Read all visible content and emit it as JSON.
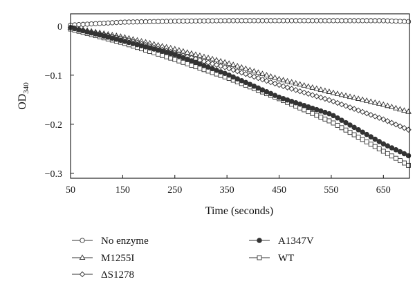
{
  "chart_data": {
    "type": "line",
    "title": "",
    "xlabel": "Time (seconds)",
    "ylabel": "OD",
    "ylabel_subscript": "340",
    "xlim": [
      50,
      700
    ],
    "ylim": [
      -0.31,
      0.025
    ],
    "x_ticks": [
      50,
      150,
      250,
      350,
      450,
      550,
      650
    ],
    "y_ticks": [
      0,
      -0.1,
      -0.2,
      -0.3
    ],
    "y_tick_labels": [
      "0",
      "−0.1",
      "−0.2",
      "−0.3"
    ],
    "grid": false,
    "legend_position": "below",
    "x": [
      50,
      150,
      250,
      350,
      450,
      550,
      650,
      700
    ],
    "series": [
      {
        "name": "No enzyme",
        "marker": "circle-open",
        "values": [
          0.002,
          0.008,
          0.01,
          0.011,
          0.011,
          0.011,
          0.011,
          0.009
        ]
      },
      {
        "name": "M1255I",
        "marker": "triangle-open",
        "values": [
          -0.003,
          -0.022,
          -0.047,
          -0.075,
          -0.108,
          -0.135,
          -0.16,
          -0.175
        ]
      },
      {
        "name": "ΔS1278",
        "marker": "diamond-open",
        "values": [
          -0.003,
          -0.026,
          -0.055,
          -0.085,
          -0.12,
          -0.152,
          -0.19,
          -0.212
        ]
      },
      {
        "name": "A1347V",
        "marker": "circle-filled",
        "values": [
          -0.003,
          -0.03,
          -0.058,
          -0.098,
          -0.145,
          -0.18,
          -0.24,
          -0.265
        ]
      },
      {
        "name": "WT",
        "marker": "square-open",
        "values": [
          -0.006,
          -0.034,
          -0.068,
          -0.105,
          -0.148,
          -0.195,
          -0.255,
          -0.285
        ]
      }
    ]
  }
}
